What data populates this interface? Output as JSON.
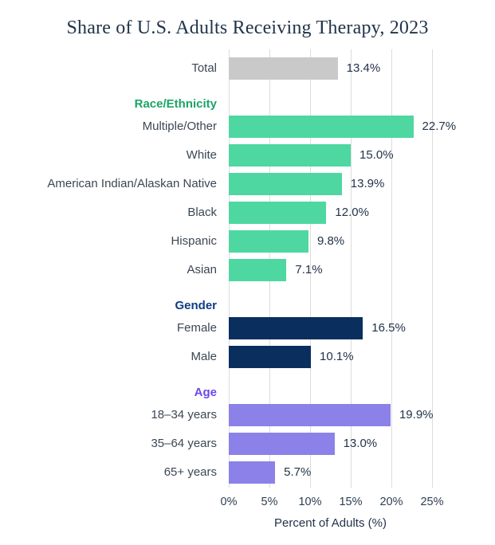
{
  "title": "Share of U.S. Adults Receiving Therapy, 2023",
  "title_color": "#20344a",
  "chart_data": {
    "type": "bar",
    "orientation": "horizontal",
    "title": "Share of U.S. Adults Receiving Therapy, 2023",
    "xlabel": "Percent of Adults (%)",
    "xlim": [
      0,
      25
    ],
    "tick_values": [
      0,
      5,
      10,
      15,
      20,
      25
    ],
    "tick_labels": [
      "0%",
      "5%",
      "10%",
      "15%",
      "20%",
      "25%"
    ],
    "grid": true,
    "legend": "none",
    "grid_color": "#dcdcdc",
    "groups": [
      {
        "header": "",
        "header_color": "",
        "bar_color": "#c9c9c9",
        "items": [
          {
            "label": "Total",
            "value": 13.4,
            "value_label": "13.4%"
          }
        ]
      },
      {
        "header": "Race/Ethnicity",
        "header_color": "#1aa566",
        "bar_color": "#4ed7a1",
        "items": [
          {
            "label": "Multiple/Other",
            "value": 22.7,
            "value_label": "22.7%"
          },
          {
            "label": "White",
            "value": 15.0,
            "value_label": "15.0%"
          },
          {
            "label": "American Indian/Alaskan Native",
            "value": 13.9,
            "value_label": "13.9%"
          },
          {
            "label": "Black",
            "value": 12.0,
            "value_label": "12.0%"
          },
          {
            "label": "Hispanic",
            "value": 9.8,
            "value_label": "9.8%"
          },
          {
            "label": "Asian",
            "value": 7.1,
            "value_label": "7.1%"
          }
        ]
      },
      {
        "header": "Gender",
        "header_color": "#0e3c85",
        "bar_color": "#0a2f5e",
        "items": [
          {
            "label": "Female",
            "value": 16.5,
            "value_label": "16.5%"
          },
          {
            "label": "Male",
            "value": 10.1,
            "value_label": "10.1%"
          }
        ]
      },
      {
        "header": "Age",
        "header_color": "#6a48ea",
        "bar_color": "#8b81e8",
        "items": [
          {
            "label": "18–34 years",
            "value": 19.9,
            "value_label": "19.9%"
          },
          {
            "label": "35–64 years",
            "value": 13.0,
            "value_label": "13.0%"
          },
          {
            "label": "65+ years",
            "value": 5.7,
            "value_label": "5.7%"
          }
        ]
      }
    ]
  }
}
